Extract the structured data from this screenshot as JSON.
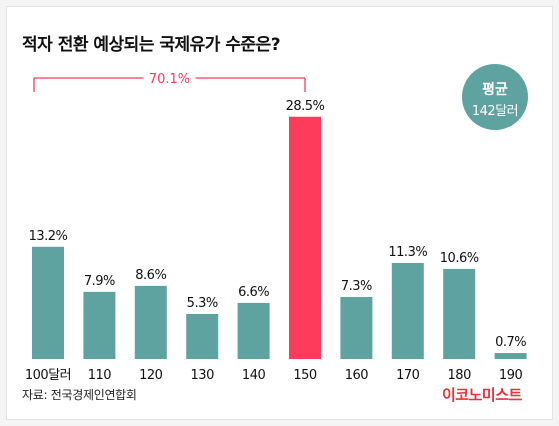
{
  "title": "적자 전환 예상되는 국제유가 수준은?",
  "source": "자료: 전국경제인연합회",
  "brand": "이코노미스트",
  "average_badge": {
    "line1": "평균",
    "line2": "142달러"
  },
  "bracket_label": "70.1%",
  "colors": {
    "bar": "#5fa3a0",
    "highlight": "#ff3b5c",
    "text": "#111111",
    "brand": "#e8323c"
  },
  "chart_data": {
    "type": "bar",
    "categories": [
      "100달러",
      "110",
      "120",
      "130",
      "140",
      "150",
      "160",
      "170",
      "180",
      "190"
    ],
    "values": [
      13.2,
      7.9,
      8.6,
      5.3,
      6.6,
      28.5,
      7.3,
      11.3,
      10.6,
      0.7
    ],
    "labels": [
      "13.2%",
      "7.9%",
      "8.6%",
      "5.3%",
      "6.6%",
      "28.5%",
      "7.3%",
      "11.3%",
      "10.6%",
      "0.7%"
    ],
    "highlight_index": 5,
    "ylim": [
      0,
      30
    ],
    "grid": false,
    "annotations": [
      {
        "text": "70.1%",
        "span": [
          "100달러",
          "150"
        ]
      }
    ]
  }
}
